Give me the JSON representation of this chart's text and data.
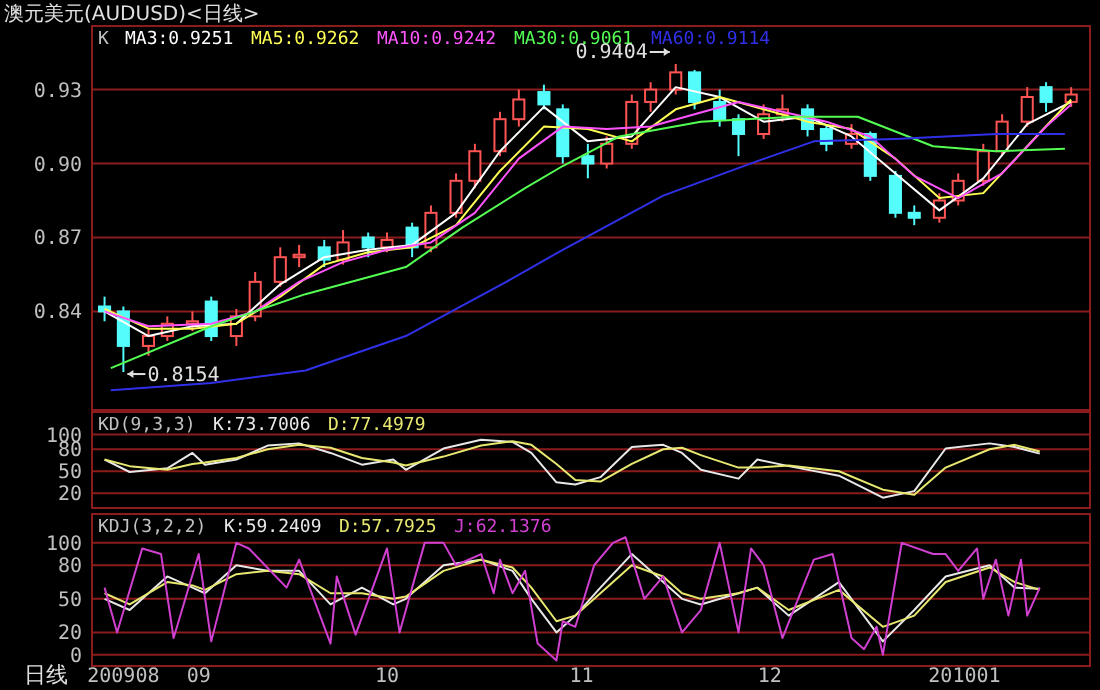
{
  "chart_data": [
    {
      "type": "candlestick",
      "title": "澳元美元(AUDUSD)<日线>",
      "legend_title": "K",
      "legend": "top left",
      "grid": "y",
      "tick_labels": "y",
      "xlim": [
        "2009-08-15",
        "2010-01-21"
      ],
      "ylim": [
        0.8,
        0.955
      ],
      "yticks": [
        0.84,
        0.87,
        {
          "value": 0.9,
          "label": "0.90"
        },
        0.93
      ],
      "x": [
        "2009-08-17",
        "2009-08-20",
        "2009-08-24",
        "2009-08-27",
        "2009-08-31",
        "2009-09-03",
        "2009-09-07",
        "2009-09-10",
        "2009-09-14",
        "2009-09-17",
        "2009-09-21",
        "2009-09-24",
        "2009-09-28",
        "2009-10-01",
        "2009-10-05",
        "2009-10-08",
        "2009-10-12",
        "2009-10-15",
        "2009-10-19",
        "2009-10-22",
        "2009-10-26",
        "2009-10-29",
        "2009-11-02",
        "2009-11-05",
        "2009-11-09",
        "2009-11-12",
        "2009-11-16",
        "2009-11-19",
        "2009-11-23",
        "2009-11-26",
        "2009-11-30",
        "2009-12-03",
        "2009-12-07",
        "2009-12-10",
        "2009-12-14",
        "2009-12-17",
        "2009-12-21",
        "2009-12-24",
        "2009-12-28",
        "2009-12-31",
        "2010-01-04",
        "2010-01-07",
        "2010-01-11",
        "2010-01-14",
        "2010-01-18"
      ],
      "ohlc": [
        [
          0.842,
          0.846,
          0.836,
          0.84
        ],
        [
          0.84,
          0.842,
          0.8154,
          0.826
        ],
        [
          0.826,
          0.833,
          0.822,
          0.83
        ],
        [
          0.83,
          0.838,
          0.828,
          0.835
        ],
        [
          0.835,
          0.84,
          0.832,
          0.836
        ],
        [
          0.844,
          0.846,
          0.828,
          0.83
        ],
        [
          0.83,
          0.841,
          0.826,
          0.838
        ],
        [
          0.838,
          0.856,
          0.836,
          0.852
        ],
        [
          0.852,
          0.866,
          0.85,
          0.862
        ],
        [
          0.862,
          0.867,
          0.858,
          0.863
        ],
        [
          0.866,
          0.869,
          0.858,
          0.861
        ],
        [
          0.861,
          0.873,
          0.859,
          0.868
        ],
        [
          0.87,
          0.872,
          0.862,
          0.866
        ],
        [
          0.866,
          0.872,
          0.864,
          0.869
        ],
        [
          0.874,
          0.876,
          0.862,
          0.866
        ],
        [
          0.866,
          0.883,
          0.864,
          0.88
        ],
        [
          0.88,
          0.896,
          0.878,
          0.893
        ],
        [
          0.893,
          0.908,
          0.89,
          0.905
        ],
        [
          0.905,
          0.921,
          0.903,
          0.918
        ],
        [
          0.918,
          0.93,
          0.915,
          0.926
        ],
        [
          0.929,
          0.932,
          0.922,
          0.924
        ],
        [
          0.922,
          0.924,
          0.9,
          0.903
        ],
        [
          0.903,
          0.908,
          0.894,
          0.9
        ],
        [
          0.9,
          0.911,
          0.898,
          0.908
        ],
        [
          0.908,
          0.928,
          0.906,
          0.925
        ],
        [
          0.925,
          0.933,
          0.921,
          0.93
        ],
        [
          0.93,
          0.9404,
          0.928,
          0.937
        ],
        [
          0.937,
          0.938,
          0.922,
          0.925
        ],
        [
          0.925,
          0.93,
          0.915,
          0.918
        ],
        [
          0.918,
          0.92,
          0.903,
          0.912
        ],
        [
          0.912,
          0.924,
          0.91,
          0.92
        ],
        [
          0.92,
          0.928,
          0.917,
          0.922
        ],
        [
          0.922,
          0.924,
          0.911,
          0.914
        ],
        [
          0.914,
          0.916,
          0.905,
          0.908
        ],
        [
          0.908,
          0.916,
          0.906,
          0.912
        ],
        [
          0.912,
          0.913,
          0.893,
          0.895
        ],
        [
          0.895,
          0.897,
          0.878,
          0.88
        ],
        [
          0.88,
          0.883,
          0.875,
          0.878
        ],
        [
          0.878,
          0.888,
          0.876,
          0.885
        ],
        [
          0.885,
          0.896,
          0.883,
          0.893
        ],
        [
          0.893,
          0.908,
          0.891,
          0.905
        ],
        [
          0.905,
          0.92,
          0.903,
          0.917
        ],
        [
          0.917,
          0.931,
          0.915,
          0.927
        ],
        [
          0.931,
          0.933,
          0.921,
          0.925
        ],
        [
          0.925,
          0.931,
          0.923,
          0.928
        ]
      ],
      "colors": [
        "#54fcfc",
        "#54fcfc",
        "#ff5454",
        "#ff5454",
        "#ff5454",
        "#54fcfc",
        "#ff5454",
        "#ff5454",
        "#ff5454",
        "#ff5454",
        "#54fcfc",
        "#ff5454",
        "#54fcfc",
        "#ff5454",
        "#54fcfc",
        "#ff5454",
        "#ff5454",
        "#ff5454",
        "#ff5454",
        "#ff5454",
        "#54fcfc",
        "#54fcfc",
        "#54fcfc",
        "#ff5454",
        "#ff5454",
        "#ff5454",
        "#ff5454",
        "#54fcfc",
        "#54fcfc",
        "#54fcfc",
        "#ff5454",
        "#ff5454",
        "#54fcfc",
        "#54fcfc",
        "#ff5454",
        "#54fcfc",
        "#54fcfc",
        "#54fcfc",
        "#ff5454",
        "#ff5454",
        "#ff5454",
        "#ff5454",
        "#ff5454",
        "#54fcfc",
        "#ff5454"
      ],
      "series": [
        {
          "type": "line",
          "name": "MA3:0.9251",
          "color": "#ffffff",
          "x": [
            "2009-08-17",
            "2009-08-24",
            "2009-08-31",
            "2009-09-07",
            "2009-09-14",
            "2009-09-21",
            "2009-09-28",
            "2009-10-05",
            "2009-10-12",
            "2009-10-19",
            "2009-10-26",
            "2009-11-02",
            "2009-11-09",
            "2009-11-16",
            "2009-11-23",
            "2009-11-30",
            "2009-12-07",
            "2009-12-14",
            "2009-12-21",
            "2009-12-28",
            "2010-01-04",
            "2010-01-11",
            "2010-01-18"
          ],
          "values": [
            0.84,
            0.83,
            0.834,
            0.835,
            0.851,
            0.862,
            0.865,
            0.867,
            0.88,
            0.905,
            0.923,
            0.909,
            0.911,
            0.931,
            0.927,
            0.917,
            0.919,
            0.911,
            0.896,
            0.881,
            0.894,
            0.916,
            0.925
          ]
        },
        {
          "type": "line",
          "name": "MA5:0.9262",
          "color": "#ffff54",
          "x": [
            "2009-08-17",
            "2009-08-24",
            "2009-08-31",
            "2009-09-07",
            "2009-09-14",
            "2009-09-21",
            "2009-09-28",
            "2009-10-05",
            "2009-10-12",
            "2009-10-19",
            "2009-10-26",
            "2009-11-02",
            "2009-11-09",
            "2009-11-16",
            "2009-11-23",
            "2009-11-30",
            "2009-12-07",
            "2009-12-14",
            "2009-12-21",
            "2009-12-28",
            "2010-01-04",
            "2010-01-11",
            "2010-01-18"
          ],
          "values": [
            0.841,
            0.833,
            0.833,
            0.835,
            0.846,
            0.859,
            0.864,
            0.866,
            0.875,
            0.897,
            0.915,
            0.914,
            0.909,
            0.922,
            0.927,
            0.922,
            0.917,
            0.914,
            0.902,
            0.886,
            0.888,
            0.907,
            0.926
          ]
        },
        {
          "type": "line",
          "name": "MA10:0.9242",
          "color": "#ff54ff",
          "x": [
            "2009-08-17",
            "2009-08-24",
            "2009-09-03",
            "2009-09-10",
            "2009-09-17",
            "2009-09-24",
            "2009-10-01",
            "2009-10-08",
            "2009-10-15",
            "2009-10-22",
            "2009-10-29",
            "2009-11-05",
            "2009-11-12",
            "2009-11-19",
            "2009-11-26",
            "2009-12-03",
            "2009-12-10",
            "2009-12-17",
            "2009-12-24",
            "2009-12-31",
            "2010-01-07",
            "2010-01-14",
            "2010-01-18"
          ],
          "values": [
            0.84,
            0.834,
            0.835,
            0.84,
            0.852,
            0.86,
            0.865,
            0.868,
            0.88,
            0.902,
            0.915,
            0.914,
            0.915,
            0.92,
            0.925,
            0.921,
            0.917,
            0.911,
            0.895,
            0.886,
            0.896,
            0.915,
            0.924
          ]
        },
        {
          "type": "line",
          "name": "MA30:0.9061",
          "color": "#54ff54",
          "x": [
            "2009-08-18",
            "2009-09-03",
            "2009-09-18",
            "2009-10-04",
            "2009-10-13",
            "2009-10-23",
            "2009-10-29",
            "2009-11-07",
            "2009-11-20",
            "2009-12-05",
            "2009-12-15",
            "2009-12-27",
            "2010-01-06",
            "2010-01-17"
          ],
          "values": [
            0.817,
            0.834,
            0.847,
            0.858,
            0.874,
            0.89,
            0.899,
            0.911,
            0.917,
            0.919,
            0.919,
            0.907,
            0.905,
            0.906
          ]
        },
        {
          "type": "line",
          "name": "MA60:0.9114",
          "color": "#3030e8",
          "x": [
            "2009-08-18",
            "2009-09-03",
            "2009-09-18",
            "2009-10-04",
            "2009-10-20",
            "2009-10-29",
            "2009-11-14",
            "2009-11-29",
            "2009-12-08",
            "2009-12-21",
            "2010-01-06",
            "2010-01-17"
          ],
          "values": [
            0.808,
            0.811,
            0.816,
            0.83,
            0.852,
            0.865,
            0.887,
            0.901,
            0.909,
            0.91,
            0.912,
            0.912
          ]
        }
      ],
      "annotations": [
        {
          "text": "0.9404",
          "x": "2009-11-16",
          "y": 0.9404
        },
        {
          "text": "0.8154",
          "x": "2009-08-20",
          "y": 0.8154
        }
      ]
    },
    {
      "type": "line",
      "legend_title": "KD(9,3,3)",
      "legend": "top left",
      "grid": "y",
      "tick_labels": "y",
      "xlim": [
        "2009-08-15",
        "2010-01-21"
      ],
      "ylim": [
        0,
        128
      ],
      "yticks": [
        20,
        50,
        80,
        100
      ],
      "x": [
        "2009-08-17",
        "2009-08-21",
        "2009-08-27",
        "2009-08-31",
        "2009-09-02",
        "2009-09-07",
        "2009-09-12",
        "2009-09-17",
        "2009-09-22",
        "2009-09-27",
        "2009-10-02",
        "2009-10-04",
        "2009-10-10",
        "2009-10-16",
        "2009-10-21",
        "2009-10-24",
        "2009-10-28",
        "2009-10-31",
        "2009-11-04",
        "2009-11-09",
        "2009-11-14",
        "2009-11-17",
        "2009-11-20",
        "2009-11-26",
        "2009-11-29",
        "2009-12-04",
        "2009-12-12",
        "2009-12-19",
        "2009-12-24",
        "2009-12-29",
        "2010-01-05",
        "2010-01-09",
        "2010-01-13"
      ],
      "series": [
        {
          "name": "K:73.7006",
          "color": "#e8e8e8",
          "values": [
            66,
            49,
            54,
            75,
            59,
            66,
            85,
            88,
            75,
            59,
            66,
            52,
            81,
            93,
            90,
            75,
            35,
            32,
            42,
            83,
            86,
            75,
            52,
            40,
            66,
            57,
            44,
            14,
            23,
            81,
            88,
            83,
            74
          ]
        },
        {
          "name": "D:77.4979",
          "color": "#e8e870",
          "values": [
            66,
            57,
            52,
            60,
            62,
            68,
            80,
            86,
            82,
            68,
            62,
            58,
            70,
            85,
            91,
            86,
            60,
            38,
            36,
            60,
            80,
            82,
            72,
            55,
            55,
            58,
            50,
            25,
            18,
            55,
            80,
            86,
            77
          ]
        }
      ]
    },
    {
      "type": "line",
      "legend_title": "KDJ(3,2,2)",
      "legend": "top left",
      "grid": "y",
      "xlabel": "日线",
      "xlim": [
        "2009-08-15",
        "2010-01-21"
      ],
      "ylim": [
        -10,
        124
      ],
      "yticks": [
        0,
        20,
        50,
        80,
        100
      ],
      "xticks": [
        {
          "value": "2009-08-20",
          "label": "200908"
        },
        {
          "value": "2009-09-01",
          "label": "09"
        },
        {
          "value": "2009-10-01",
          "label": "10"
        },
        {
          "value": "2009-11-01",
          "label": "11"
        },
        {
          "value": "2009-12-01",
          "label": "12"
        },
        {
          "value": "2010-01-01",
          "label": "201001"
        }
      ],
      "x": [
        "2009-08-17",
        "2009-08-21",
        "2009-08-27",
        "2009-08-31",
        "2009-09-02",
        "2009-09-07",
        "2009-09-12",
        "2009-09-17",
        "2009-09-22",
        "2009-09-27",
        "2009-10-02",
        "2009-10-04",
        "2009-10-10",
        "2009-10-16",
        "2009-10-21",
        "2009-10-24",
        "2009-10-28",
        "2009-10-31",
        "2009-11-04",
        "2009-11-09",
        "2009-11-14",
        "2009-11-17",
        "2009-11-20",
        "2009-11-26",
        "2009-11-29",
        "2009-12-04",
        "2009-12-12",
        "2009-12-19",
        "2009-12-24",
        "2009-12-29",
        "2010-01-05",
        "2010-01-09",
        "2010-01-13"
      ],
      "series": [
        {
          "name": "K:59.2409",
          "color": "#e8e8e8",
          "values": [
            50,
            40,
            70,
            60,
            55,
            80,
            75,
            75,
            45,
            60,
            45,
            50,
            80,
            85,
            75,
            50,
            20,
            35,
            60,
            90,
            65,
            50,
            45,
            55,
            60,
            35,
            65,
            12,
            40,
            70,
            80,
            60,
            59
          ]
        },
        {
          "name": "D:57.7925",
          "color": "#e8e870",
          "values": [
            55,
            45,
            65,
            62,
            58,
            72,
            75,
            72,
            55,
            55,
            50,
            52,
            75,
            85,
            78,
            60,
            30,
            35,
            55,
            80,
            70,
            55,
            50,
            55,
            60,
            40,
            58,
            25,
            35,
            65,
            78,
            65,
            58
          ]
        },
        {
          "name": "J:62.1376",
          "color": "#d040d0",
          "x": [
            "2009-08-17",
            "2009-08-19",
            "2009-08-23",
            "2009-08-26",
            "2009-08-28",
            "2009-09-01",
            "2009-09-03",
            "2009-09-07",
            "2009-09-09",
            "2009-09-15",
            "2009-09-17",
            "2009-09-22",
            "2009-09-23",
            "2009-09-26",
            "2009-10-01",
            "2009-10-03",
            "2009-10-07",
            "2009-10-10",
            "2009-10-12",
            "2009-10-16",
            "2009-10-18",
            "2009-10-19",
            "2009-10-21",
            "2009-10-23",
            "2009-10-25",
            "2009-10-28",
            "2009-10-29",
            "2009-10-31",
            "2009-11-03",
            "2009-11-06",
            "2009-11-08",
            "2009-11-11",
            "2009-11-14",
            "2009-11-17",
            "2009-11-20",
            "2009-11-23",
            "2009-11-26",
            "2009-11-28",
            "2009-11-30",
            "2009-12-03",
            "2009-12-08",
            "2009-12-11",
            "2009-12-14",
            "2009-12-16",
            "2009-12-18",
            "2009-12-19",
            "2009-12-22",
            "2009-12-27",
            "2009-12-29",
            "2009-12-31",
            "2010-01-03",
            "2010-01-04",
            "2010-01-06",
            "2010-01-08",
            "2010-01-10",
            "2010-01-11",
            "2010-01-13"
          ],
          "values": [
            60,
            20,
            95,
            90,
            15,
            90,
            12,
            100,
            95,
            60,
            85,
            10,
            70,
            18,
            95,
            20,
            100,
            100,
            80,
            90,
            55,
            85,
            55,
            75,
            10,
            -5,
            30,
            25,
            80,
            100,
            105,
            50,
            70,
            20,
            40,
            100,
            20,
            95,
            80,
            15,
            85,
            90,
            15,
            5,
            25,
            0,
            100,
            90,
            90,
            75,
            95,
            50,
            85,
            35,
            85,
            35,
            60
          ]
        }
      ]
    }
  ]
}
